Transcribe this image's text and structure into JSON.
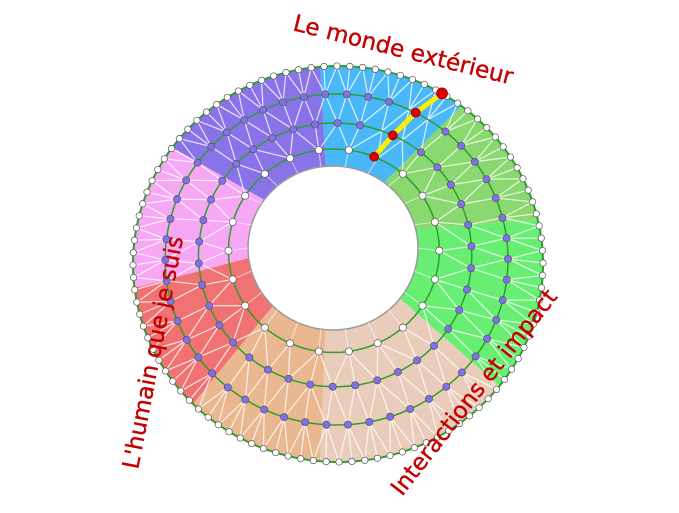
{
  "labels": {
    "top": "Le monde extérieur",
    "left": "L'humain que je suis",
    "bottom_right": "Interactions et impact"
  },
  "colors": {
    "label": "#c40000",
    "ring_line": "#2e9e2e",
    "inner_dot": "#8070ee",
    "outer_dot": "#ffffff",
    "path": "#ffee00",
    "path_dot": "#e00000",
    "hole_border": "#9a9a9a"
  },
  "sectors": [
    {
      "name": "blue",
      "color": "#4ab8f8",
      "from": 53,
      "to": 95
    },
    {
      "name": "purple",
      "color": "#8a72e8",
      "from": 95,
      "to": 144
    },
    {
      "name": "pink",
      "color": "#f6a8f4",
      "from": 144,
      "to": 187
    },
    {
      "name": "red",
      "color": "#f07272",
      "from": 187,
      "to": 225
    },
    {
      "name": "tan",
      "color": "#e9b890",
      "from": 225,
      "to": 265
    },
    {
      "name": "beige",
      "color": "#e9ccb9",
      "from": 265,
      "to": 322
    },
    {
      "name": "green",
      "color": "#68ee72",
      "from": 322,
      "to": 373
    },
    {
      "name": "light-green",
      "color": "#8ad870",
      "from": 373,
      "to": 413
    }
  ],
  "rings": [
    {
      "level": 0.17,
      "dots": 22,
      "dot_color": "#ffffff"
    },
    {
      "level": 0.43,
      "dots": 38,
      "dot_color": "#8070ee"
    },
    {
      "level": 0.72,
      "dots": 50,
      "dot_color": "#8070ee"
    },
    {
      "level": 1.0,
      "dots": 100,
      "dot_color": "#ffffff"
    }
  ],
  "path_angles": [
    67.5,
    65,
    62.5,
    59.5
  ]
}
